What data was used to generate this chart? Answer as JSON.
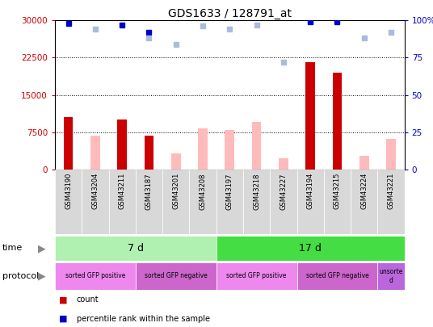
{
  "title": "GDS1633 / 128791_at",
  "samples": [
    "GSM43190",
    "GSM43204",
    "GSM43211",
    "GSM43187",
    "GSM43201",
    "GSM43208",
    "GSM43197",
    "GSM43218",
    "GSM43227",
    "GSM43194",
    "GSM43215",
    "GSM43224",
    "GSM43221"
  ],
  "count_values": [
    10500,
    0,
    10000,
    6800,
    0,
    0,
    0,
    0,
    0,
    21500,
    19500,
    0,
    0
  ],
  "absent_values": [
    0,
    6800,
    0,
    0,
    3200,
    8200,
    8000,
    9500,
    2200,
    0,
    0,
    2800,
    6200
  ],
  "rank_present": [
    98,
    0,
    97,
    92,
    0,
    0,
    0,
    0,
    0,
    99,
    99,
    0,
    0
  ],
  "rank_absent": [
    0,
    94,
    0,
    88,
    84,
    96,
    94,
    97,
    72,
    0,
    0,
    88,
    92
  ],
  "ylim_left": [
    0,
    30000
  ],
  "ylim_right": [
    0,
    100
  ],
  "yticks_left": [
    0,
    7500,
    15000,
    22500,
    30000
  ],
  "yticks_right": [
    0,
    25,
    50,
    75,
    100
  ],
  "time_groups": [
    {
      "label": "7 d",
      "start": 0,
      "end": 6,
      "color": "#b0f0b0"
    },
    {
      "label": "17 d",
      "start": 6,
      "end": 13,
      "color": "#44dd44"
    }
  ],
  "protocol_groups": [
    {
      "label": "sorted GFP positive",
      "start": 0,
      "end": 3,
      "color": "#ee88ee"
    },
    {
      "label": "sorted GFP negative",
      "start": 3,
      "end": 6,
      "color": "#cc66cc"
    },
    {
      "label": "sorted GFP positive",
      "start": 6,
      "end": 9,
      "color": "#ee88ee"
    },
    {
      "label": "sorted GFP negative",
      "start": 9,
      "end": 12,
      "color": "#cc66cc"
    },
    {
      "label": "unsorte\nd",
      "start": 12,
      "end": 13,
      "color": "#bb66dd"
    }
  ],
  "count_color": "#cc0000",
  "absent_color": "#ffbbbb",
  "rank_present_color": "#0000cc",
  "rank_absent_color": "#aabbdd",
  "left_label_color": "#cc0000",
  "right_label_color": "#0000cc",
  "sample_box_color": "#d8d8d8",
  "plot_bg": "#ffffff"
}
